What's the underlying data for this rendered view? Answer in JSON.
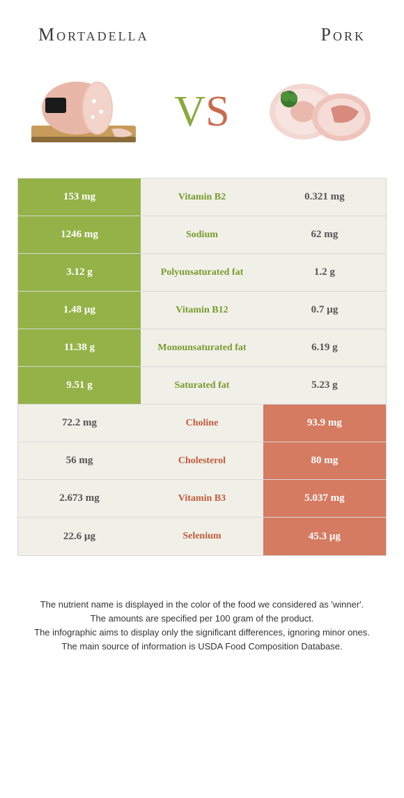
{
  "header": {
    "left_title": "Mortadella",
    "right_title": "Pork"
  },
  "vs": {
    "v": "V",
    "s": "S"
  },
  "colors": {
    "green": "#94b247",
    "red": "#d57b61",
    "mid_bg": "#f0f0e8",
    "green_text": "#7a9a2e",
    "red_text": "#c35a3a"
  },
  "rows": [
    {
      "left": "153 mg",
      "mid": "Vitamin B2",
      "right": "0.321 mg",
      "winner": "left"
    },
    {
      "left": "1246 mg",
      "mid": "Sodium",
      "right": "62 mg",
      "winner": "left"
    },
    {
      "left": "3.12 g",
      "mid": "Polyunsaturated fat",
      "right": "1.2 g",
      "winner": "left"
    },
    {
      "left": "1.48 µg",
      "mid": "Vitamin B12",
      "right": "0.7 µg",
      "winner": "left"
    },
    {
      "left": "11.38 g",
      "mid": "Monounsaturated fat",
      "right": "6.19 g",
      "winner": "left"
    },
    {
      "left": "9.51 g",
      "mid": "Saturated fat",
      "right": "5.23 g",
      "winner": "left"
    },
    {
      "left": "72.2 mg",
      "mid": "Choline",
      "right": "93.9 mg",
      "winner": "right"
    },
    {
      "left": "56 mg",
      "mid": "Cholesterol",
      "right": "80 mg",
      "winner": "right"
    },
    {
      "left": "2.673 mg",
      "mid": "Vitamin B3",
      "right": "5.037 mg",
      "winner": "right"
    },
    {
      "left": "22.6 µg",
      "mid": "Selenium",
      "right": "45.3 µg",
      "winner": "right"
    }
  ],
  "footer": {
    "line1": "The nutrient name is displayed in the color of the food we considered as 'winner'.",
    "line2": "The amounts are specified per 100 gram of the product.",
    "line3": "The infographic aims to display only the significant differences, ignoring minor ones.",
    "line4": "The main source of information is USDA Food Composition Database."
  }
}
